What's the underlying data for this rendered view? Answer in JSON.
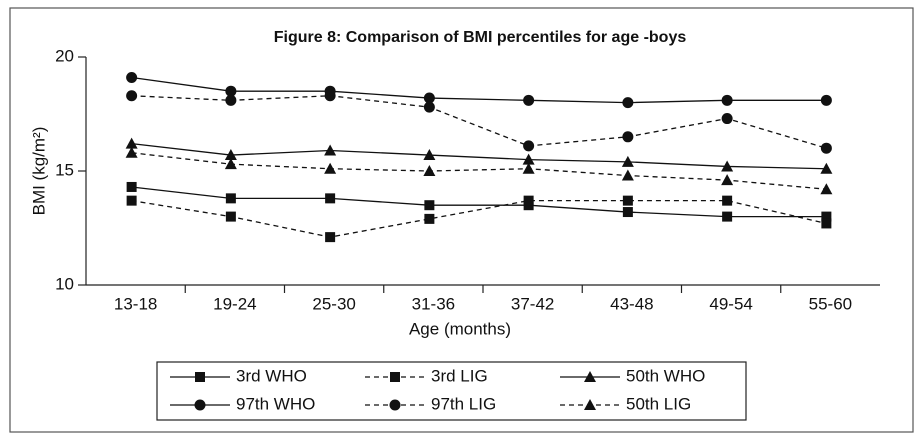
{
  "chart_data": {
    "type": "line",
    "title": "Figure 8: Comparison of BMI percentiles for age -boys",
    "x_label": "Age (months)",
    "y_label": "BMI (kg/m²)",
    "categories": [
      "13-18",
      "19-24",
      "25-30",
      "31-36",
      "37-42",
      "43-48",
      "49-54",
      "55-60"
    ],
    "ylim": [
      10,
      20
    ],
    "yticks": [
      10,
      15,
      20
    ],
    "series": [
      {
        "name": "3rd WHO",
        "color": "#111111",
        "marker": "square",
        "dashed": false,
        "values": [
          14.3,
          13.8,
          13.8,
          13.5,
          13.5,
          13.2,
          13.0,
          13.0
        ]
      },
      {
        "name": "3rd LIG",
        "color": "#111111",
        "marker": "square",
        "dashed": true,
        "values": [
          13.7,
          13.0,
          12.1,
          12.9,
          13.7,
          13.7,
          13.7,
          12.7
        ]
      },
      {
        "name": "50th WHO",
        "color": "#111111",
        "marker": "triangle",
        "dashed": false,
        "values": [
          16.2,
          15.7,
          15.9,
          15.7,
          15.5,
          15.4,
          15.2,
          15.1
        ]
      },
      {
        "name": "97th WHO",
        "color": "#111111",
        "marker": "circle",
        "dashed": false,
        "values": [
          19.1,
          18.5,
          18.5,
          18.2,
          18.1,
          18.0,
          18.1,
          18.1
        ]
      },
      {
        "name": "97th LIG",
        "color": "#111111",
        "marker": "circle",
        "dashed": true,
        "values": [
          18.3,
          18.1,
          18.3,
          17.8,
          16.1,
          16.5,
          17.3,
          16.0
        ]
      },
      {
        "name": "50th LIG",
        "color": "#111111",
        "marker": "triangle",
        "dashed": true,
        "values": [
          15.8,
          15.3,
          15.1,
          15.0,
          15.1,
          14.8,
          14.6,
          14.2
        ]
      }
    ]
  }
}
